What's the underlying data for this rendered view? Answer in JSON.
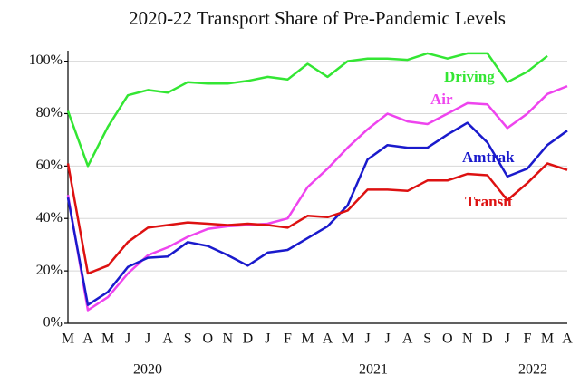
{
  "chart_data": {
    "type": "line",
    "title": "2020-22 Transport Share of Pre-Pandemic Levels",
    "categories": [
      "M",
      "A",
      "M",
      "J",
      "J",
      "A",
      "S",
      "O",
      "N",
      "D",
      "J",
      "F",
      "M",
      "A",
      "M",
      "J",
      "J",
      "A",
      "S",
      "O",
      "N",
      "D",
      "J",
      "F",
      "M",
      "A"
    ],
    "annotations": [
      "2020",
      "2021",
      "2022"
    ],
    "series": [
      {
        "name": "Driving",
        "color": "#33e633",
        "values": [
          81,
          60,
          75,
          87,
          89,
          88,
          92,
          91.5,
          91.5,
          92.5,
          94,
          93,
          99,
          94,
          100,
          101,
          101,
          100.5,
          103,
          101,
          103,
          103,
          92,
          96,
          102,
          null
        ]
      },
      {
        "name": "Air",
        "color": "#ee44ee",
        "values": [
          49,
          5,
          10,
          19,
          26,
          29,
          33,
          36,
          37,
          37.5,
          38,
          40,
          52,
          59,
          67,
          74,
          80,
          77,
          76,
          80,
          84,
          83.5,
          74.5,
          80,
          87.5,
          90.5
        ]
      },
      {
        "name": "Amtrak",
        "color": "#1a1acc",
        "values": [
          48,
          7,
          12,
          21.5,
          25,
          25.5,
          31,
          29.5,
          26,
          22,
          27,
          28,
          32.5,
          37,
          45,
          62.5,
          68,
          67,
          67,
          72,
          76.5,
          69,
          56,
          59,
          68,
          73.5
        ]
      },
      {
        "name": "Transit",
        "color": "#dd1111",
        "values": [
          61,
          19,
          22,
          31,
          36.5,
          37.5,
          38.5,
          38,
          37.5,
          38,
          37.5,
          36.5,
          41,
          40.5,
          43,
          51,
          51,
          50.5,
          54.5,
          54.5,
          57,
          56.5,
          47,
          53.5,
          61,
          58.5
        ]
      }
    ],
    "ylim": [
      0,
      104
    ],
    "yticks": [
      {
        "value": 0,
        "label": "0%"
      },
      {
        "value": 20,
        "label": "20%"
      },
      {
        "value": 40,
        "label": "40%"
      },
      {
        "value": 60,
        "label": "60%"
      },
      {
        "value": 80,
        "label": "80%"
      },
      {
        "value": 100,
        "label": "100%"
      }
    ],
    "grid": true
  }
}
